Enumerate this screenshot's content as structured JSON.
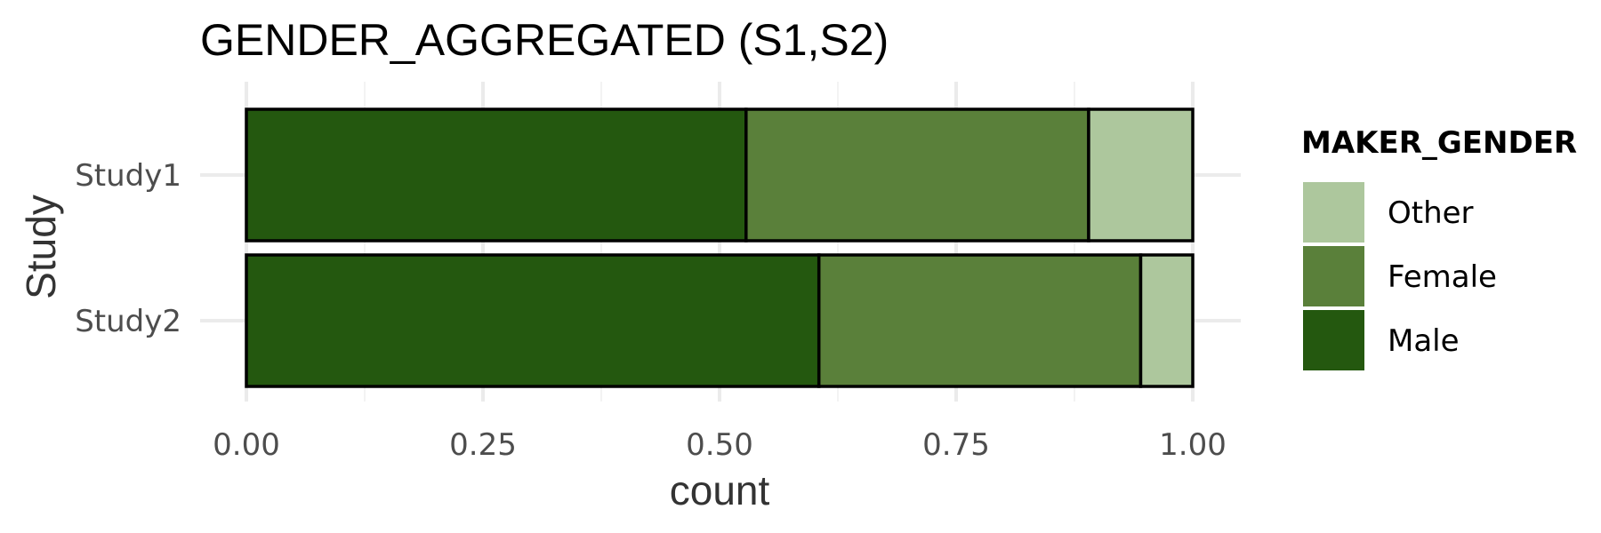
{
  "chart_data": {
    "type": "bar",
    "orientation": "horizontal",
    "stacked": true,
    "title": "GENDER_AGGREGATED (S1,S2)",
    "xlabel": "count",
    "ylabel": "Study",
    "categories": [
      "Study1",
      "Study2"
    ],
    "xlim": [
      0,
      1
    ],
    "xticks": [
      "0.00",
      "0.25",
      "0.50",
      "0.75",
      "1.00"
    ],
    "xtick_values": [
      0,
      0.25,
      0.5,
      0.75,
      1.0
    ],
    "grid": true,
    "legend": {
      "title": "MAKER_GENDER",
      "placement": "right",
      "entries": [
        "Other",
        "Female",
        "Male"
      ]
    },
    "series": [
      {
        "name": "Male",
        "color": "#24580f",
        "values": [
          0.528,
          0.605
        ]
      },
      {
        "name": "Female",
        "color": "#5a803a",
        "values": [
          0.362,
          0.34
        ]
      },
      {
        "name": "Other",
        "color": "#adc79d",
        "values": [
          0.11,
          0.055
        ]
      }
    ]
  }
}
